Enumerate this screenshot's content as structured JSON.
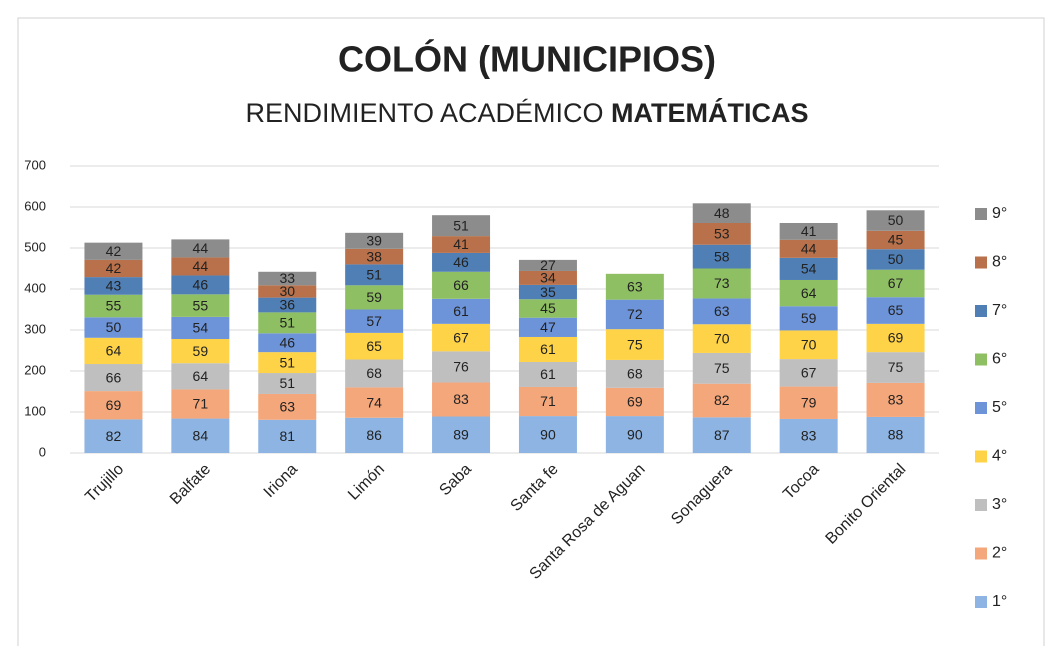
{
  "chart_data": {
    "type": "stacked_bar",
    "title": "COLÓN (MUNICIPIOS)",
    "subtitle": "RENDIMIENTO ACADÉMICO",
    "subtitle_emphasis": "MATEMÁTICAS",
    "categories": [
      "Trujillo",
      "Balfate",
      "Iriona",
      "Limón",
      "Saba",
      "Santa fe",
      "Santa Rosa de Aguan",
      "Sonaguera",
      "Tocoa",
      "Bonito Oriental"
    ],
    "series": [
      {
        "name": "1°",
        "color": "#8db4e2",
        "values": [
          82,
          84,
          81,
          86,
          89,
          90,
          90,
          87,
          83,
          88
        ]
      },
      {
        "name": "2°",
        "color": "#f4a77a",
        "values": [
          69,
          71,
          63,
          74,
          83,
          71,
          69,
          82,
          79,
          83
        ]
      },
      {
        "name": "3°",
        "color": "#bfbfbf",
        "values": [
          66,
          64,
          51,
          68,
          76,
          61,
          68,
          75,
          67,
          75
        ]
      },
      {
        "name": "4°",
        "color": "#ffd347",
        "values": [
          64,
          59,
          51,
          65,
          67,
          61,
          75,
          70,
          70,
          69
        ]
      },
      {
        "name": "5°",
        "color": "#6d94d9",
        "values": [
          50,
          54,
          46,
          57,
          61,
          47,
          72,
          63,
          59,
          65
        ]
      },
      {
        "name": "6°",
        "color": "#8fbf63",
        "values": [
          55,
          55,
          51,
          59,
          66,
          45,
          63,
          73,
          64,
          67
        ]
      },
      {
        "name": "7°",
        "color": "#4f7fb5",
        "values": [
          43,
          46,
          36,
          51,
          46,
          35,
          null,
          58,
          54,
          50
        ]
      },
      {
        "name": "8°",
        "color": "#b8714a",
        "values": [
          42,
          44,
          30,
          38,
          41,
          34,
          null,
          53,
          44,
          45
        ]
      },
      {
        "name": "9°",
        "color": "#8c8c8c",
        "values": [
          42,
          44,
          33,
          39,
          51,
          27,
          null,
          48,
          41,
          50
        ]
      }
    ],
    "ylim": [
      0,
      700
    ],
    "yticks": [
      0,
      100,
      200,
      300,
      400,
      500,
      600,
      700
    ],
    "grid": true,
    "legend": "right"
  }
}
